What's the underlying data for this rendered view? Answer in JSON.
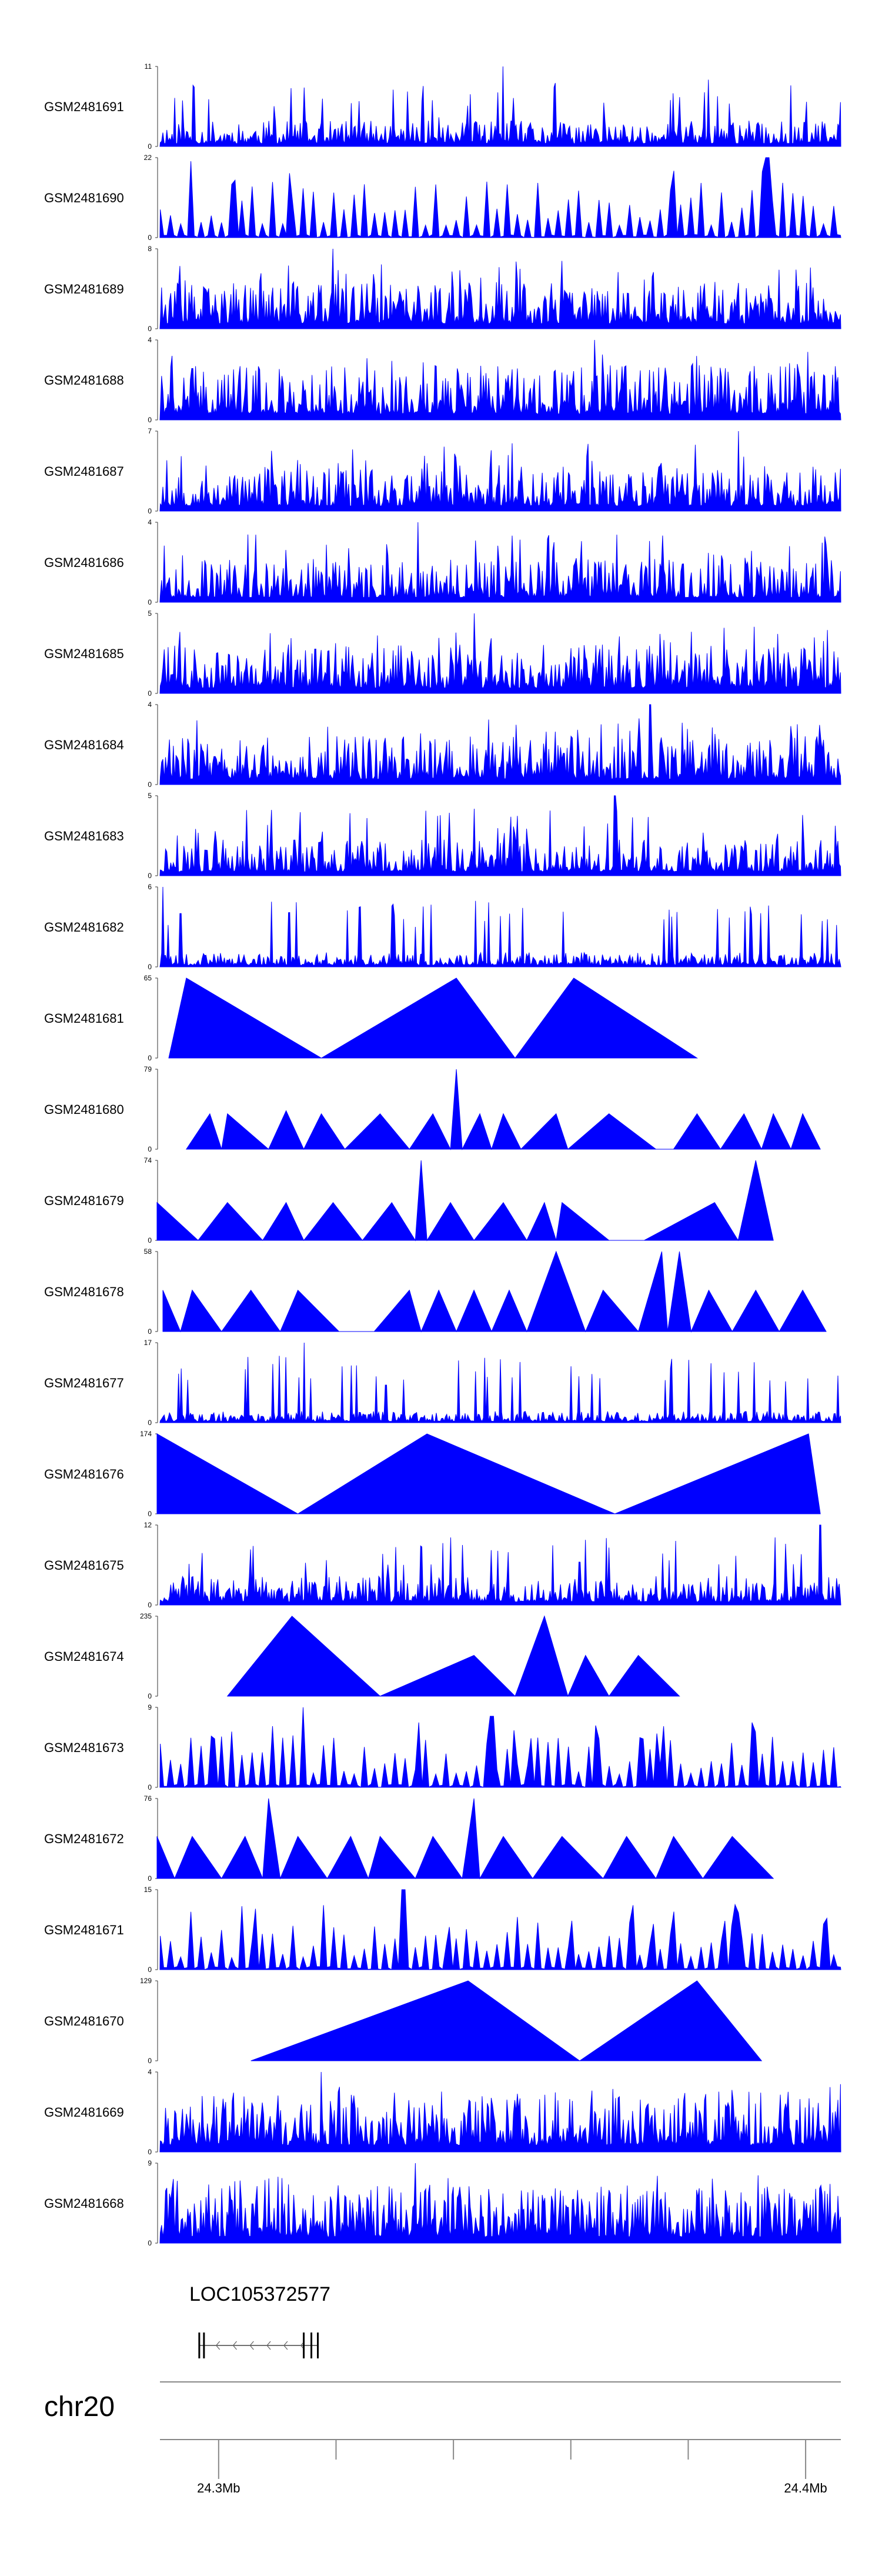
{
  "chart_data": {
    "type": "genome_tracks",
    "chromosome": "chr20",
    "region_start_mb": 24.29,
    "region_end_mb": 24.406,
    "axis_ticks_mb": [
      24.3,
      24.32,
      24.34,
      24.36,
      24.38,
      24.4
    ],
    "axis_tick_labels": [
      "24.3Mb",
      "",
      "",
      "",
      "",
      "24.4Mb"
    ],
    "series_color": "#0000FF",
    "tracks": [
      {
        "name": "GSM2481691",
        "ymin": 0,
        "ymax": 11,
        "style": "dense",
        "seed": 11,
        "level": 0.18,
        "spikes": [
          [
            24.3485,
            11
          ],
          [
            24.3375,
            4
          ]
        ]
      },
      {
        "name": "GSM2481690",
        "ymin": 0,
        "ymax": 22,
        "style": "sparse",
        "seed": 23,
        "level": 0.55,
        "spikes": [
          [
            24.2955,
            21
          ],
          [
            24.3935,
            22
          ]
        ]
      },
      {
        "name": "GSM2481689",
        "ymin": 0,
        "ymax": 8,
        "style": "dense",
        "seed": 37,
        "level": 0.32,
        "spikes": [
          [
            24.3195,
            8
          ]
        ]
      },
      {
        "name": "GSM2481688",
        "ymin": 0,
        "ymax": 4,
        "style": "dense",
        "seed": 41,
        "level": 0.38,
        "spikes": [
          [
            24.364,
            4
          ]
        ]
      },
      {
        "name": "GSM2481687",
        "ymin": 0,
        "ymax": 7,
        "style": "dense",
        "seed": 53,
        "level": 0.32,
        "spikes": [
          [
            24.3885,
            7
          ]
        ]
      },
      {
        "name": "GSM2481686",
        "ymin": 0,
        "ymax": 4,
        "style": "dense",
        "seed": 67,
        "level": 0.3,
        "spikes": [
          [
            24.334,
            4
          ]
        ]
      },
      {
        "name": "GSM2481685",
        "ymin": 0,
        "ymax": 5,
        "style": "dense",
        "seed": 71,
        "level": 0.34,
        "spikes": [
          [
            24.3435,
            5
          ]
        ]
      },
      {
        "name": "GSM2481684",
        "ymin": 0,
        "ymax": 4,
        "style": "dense",
        "seed": 83,
        "level": 0.34,
        "spikes": [
          [
            24.3735,
            4
          ]
        ]
      },
      {
        "name": "GSM2481683",
        "ymin": 0,
        "ymax": 5,
        "style": "dense",
        "seed": 97,
        "level": 0.25,
        "spikes": [
          [
            24.3675,
            5
          ]
        ]
      },
      {
        "name": "GSM2481682",
        "ymin": 0,
        "ymax": 6,
        "style": "dense",
        "seed": 101,
        "level": 0.1,
        "spikes": [
          [
            24.2905,
            6
          ],
          [
            24.2935,
            4
          ],
          [
            24.3335,
            3
          ]
        ]
      },
      {
        "name": "GSM2481681",
        "ymin": 0,
        "ymax": 65,
        "style": "triangles",
        "peaks": [
          [
            24.2915,
            0
          ],
          [
            24.2945,
            65
          ],
          [
            24.3175,
            0
          ],
          [
            24.3405,
            65
          ],
          [
            24.3505,
            0
          ],
          [
            24.3605,
            65
          ],
          [
            24.3815,
            0
          ]
        ]
      },
      {
        "name": "GSM2481680",
        "ymin": 0,
        "ymax": 79,
        "style": "triangles",
        "peaks": [
          [
            24.2945,
            0
          ],
          [
            24.2985,
            35
          ],
          [
            24.3005,
            0
          ],
          [
            24.3015,
            35
          ],
          [
            24.3085,
            0
          ],
          [
            24.3115,
            38
          ],
          [
            24.3145,
            0
          ],
          [
            24.3175,
            35
          ],
          [
            24.3215,
            0
          ],
          [
            24.3275,
            35
          ],
          [
            24.3325,
            0
          ],
          [
            24.3365,
            35
          ],
          [
            24.3395,
            0
          ],
          [
            24.3405,
            79
          ],
          [
            24.3415,
            0
          ],
          [
            24.3445,
            35
          ],
          [
            24.3465,
            0
          ],
          [
            24.3485,
            35
          ],
          [
            24.3515,
            0
          ],
          [
            24.3575,
            35
          ],
          [
            24.3595,
            0
          ],
          [
            24.3665,
            35
          ],
          [
            24.3745,
            0
          ],
          [
            24.3775,
            0
          ],
          [
            24.3815,
            35
          ],
          [
            24.3855,
            0
          ],
          [
            24.3895,
            35
          ],
          [
            24.3925,
            0
          ],
          [
            24.3945,
            35
          ],
          [
            24.3975,
            0
          ],
          [
            24.3995,
            35
          ],
          [
            24.4025,
            0
          ]
        ]
      },
      {
        "name": "GSM2481679",
        "ymin": 0,
        "ymax": 74,
        "style": "triangles",
        "peaks": [
          [
            24.2895,
            35
          ],
          [
            24.2965,
            0
          ],
          [
            24.3015,
            35
          ],
          [
            24.3075,
            0
          ],
          [
            24.3115,
            35
          ],
          [
            24.3145,
            0
          ],
          [
            24.3195,
            35
          ],
          [
            24.3245,
            0
          ],
          [
            24.3295,
            35
          ],
          [
            24.3335,
            0
          ],
          [
            24.3345,
            74
          ],
          [
            24.3355,
            0
          ],
          [
            24.3395,
            35
          ],
          [
            24.3435,
            0
          ],
          [
            24.3485,
            35
          ],
          [
            24.3525,
            0
          ],
          [
            24.3555,
            35
          ],
          [
            24.3575,
            0
          ],
          [
            24.3585,
            35
          ],
          [
            24.3665,
            0
          ],
          [
            24.3725,
            0
          ],
          [
            24.3845,
            35
          ],
          [
            24.3885,
            0
          ],
          [
            24.3915,
            74
          ],
          [
            24.3945,
            0
          ]
        ]
      },
      {
        "name": "GSM2481678",
        "ymin": 0,
        "ymax": 58,
        "style": "triangles",
        "peaks": [
          [
            24.2905,
            30
          ],
          [
            24.2935,
            0
          ],
          [
            24.2955,
            30
          ],
          [
            24.3005,
            0
          ],
          [
            24.3055,
            30
          ],
          [
            24.3105,
            0
          ],
          [
            24.3135,
            30
          ],
          [
            24.3205,
            0
          ],
          [
            24.3265,
            0
          ],
          [
            24.3325,
            30
          ],
          [
            24.3345,
            0
          ],
          [
            24.3375,
            30
          ],
          [
            24.3405,
            0
          ],
          [
            24.3435,
            30
          ],
          [
            24.3465,
            0
          ],
          [
            24.3495,
            30
          ],
          [
            24.3525,
            0
          ],
          [
            24.3575,
            58
          ],
          [
            24.3625,
            0
          ],
          [
            24.3655,
            30
          ],
          [
            24.3715,
            0
          ],
          [
            24.3755,
            58
          ],
          [
            24.3765,
            0
          ],
          [
            24.3785,
            58
          ],
          [
            24.3805,
            0
          ],
          [
            24.3835,
            30
          ],
          [
            24.3875,
            0
          ],
          [
            24.3915,
            30
          ],
          [
            24.3955,
            0
          ],
          [
            24.3995,
            30
          ],
          [
            24.4035,
            0
          ]
        ]
      },
      {
        "name": "GSM2481677",
        "ymin": 0,
        "ymax": 17,
        "style": "dense",
        "seed": 131,
        "level": 0.08,
        "spikes": [
          [
            24.3145,
            17
          ],
          [
            24.3285,
            8
          ],
          [
            24.4055,
            10
          ]
        ]
      },
      {
        "name": "GSM2481676",
        "ymin": 0,
        "ymax": 174,
        "style": "triangles",
        "peaks": [
          [
            24.2895,
            174
          ],
          [
            24.3135,
            0
          ],
          [
            24.3355,
            174
          ],
          [
            24.3675,
            0
          ],
          [
            24.4005,
            174
          ],
          [
            24.4025,
            0
          ]
        ]
      },
      {
        "name": "GSM2481675",
        "ymin": 0,
        "ymax": 12,
        "style": "dense",
        "seed": 151,
        "level": 0.2,
        "spikes": [
          [
            24.4025,
            12
          ],
          [
            24.3415,
            9
          ]
        ]
      },
      {
        "name": "GSM2481674",
        "ymin": 0,
        "ymax": 235,
        "style": "triangles",
        "peaks": [
          [
            24.3015,
            0
          ],
          [
            24.3125,
            235
          ],
          [
            24.3275,
            0
          ],
          [
            24.3435,
            120
          ],
          [
            24.3505,
            0
          ],
          [
            24.3555,
            235
          ],
          [
            24.3595,
            0
          ],
          [
            24.3625,
            120
          ],
          [
            24.3665,
            0
          ],
          [
            24.3715,
            120
          ],
          [
            24.3785,
            0
          ]
        ]
      },
      {
        "name": "GSM2481673",
        "ymin": 0,
        "ymax": 9,
        "style": "sparse",
        "seed": 171,
        "level": 0.5,
        "spikes": [
          [
            24.3145,
            9
          ],
          [
            24.3465,
            8
          ]
        ]
      },
      {
        "name": "GSM2481672",
        "ymin": 0,
        "ymax": 76,
        "style": "triangles",
        "peaks": [
          [
            24.2895,
            40
          ],
          [
            24.2925,
            0
          ],
          [
            24.2955,
            40
          ],
          [
            24.3005,
            0
          ],
          [
            24.3045,
            40
          ],
          [
            24.3075,
            0
          ],
          [
            24.3085,
            76
          ],
          [
            24.3105,
            0
          ],
          [
            24.3135,
            40
          ],
          [
            24.3185,
            0
          ],
          [
            24.3225,
            40
          ],
          [
            24.3255,
            0
          ],
          [
            24.3275,
            40
          ],
          [
            24.3335,
            0
          ],
          [
            24.3365,
            40
          ],
          [
            24.3415,
            0
          ],
          [
            24.3435,
            76
          ],
          [
            24.3445,
            0
          ],
          [
            24.3485,
            40
          ],
          [
            24.3535,
            0
          ],
          [
            24.3585,
            40
          ],
          [
            24.3655,
            0
          ],
          [
            24.3695,
            40
          ],
          [
            24.3745,
            0
          ],
          [
            24.3775,
            40
          ],
          [
            24.3825,
            0
          ],
          [
            24.3875,
            40
          ],
          [
            24.3945,
            0
          ]
        ]
      },
      {
        "name": "GSM2481671",
        "ymin": 0,
        "ymax": 15,
        "style": "sparse",
        "seed": 191,
        "level": 0.45,
        "spikes": [
          [
            24.3315,
            15
          ],
          [
            24.3395,
            8
          ]
        ]
      },
      {
        "name": "GSM2481670",
        "ymin": 0,
        "ymax": 129,
        "style": "triangles",
        "peaks": [
          [
            24.3055,
            0
          ],
          [
            24.3425,
            129
          ],
          [
            24.3615,
            0
          ],
          [
            24.3815,
            129
          ],
          [
            24.3925,
            0
          ]
        ]
      },
      {
        "name": "GSM2481669",
        "ymin": 0,
        "ymax": 4,
        "style": "dense",
        "seed": 211,
        "level": 0.42,
        "spikes": [
          [
            24.3175,
            4
          ]
        ]
      },
      {
        "name": "GSM2481668",
        "ymin": 0,
        "ymax": 9,
        "style": "dense",
        "seed": 223,
        "level": 0.4,
        "spikes": [
          [
            24.3335,
            9
          ]
        ]
      }
    ],
    "gene": {
      "name": "LOC105372577",
      "start_mb": 24.2967,
      "end_mb": 24.3169,
      "strand": "-",
      "exons_mb": [
        24.2967,
        24.2975,
        24.3145,
        24.3158,
        24.3169
      ]
    }
  }
}
